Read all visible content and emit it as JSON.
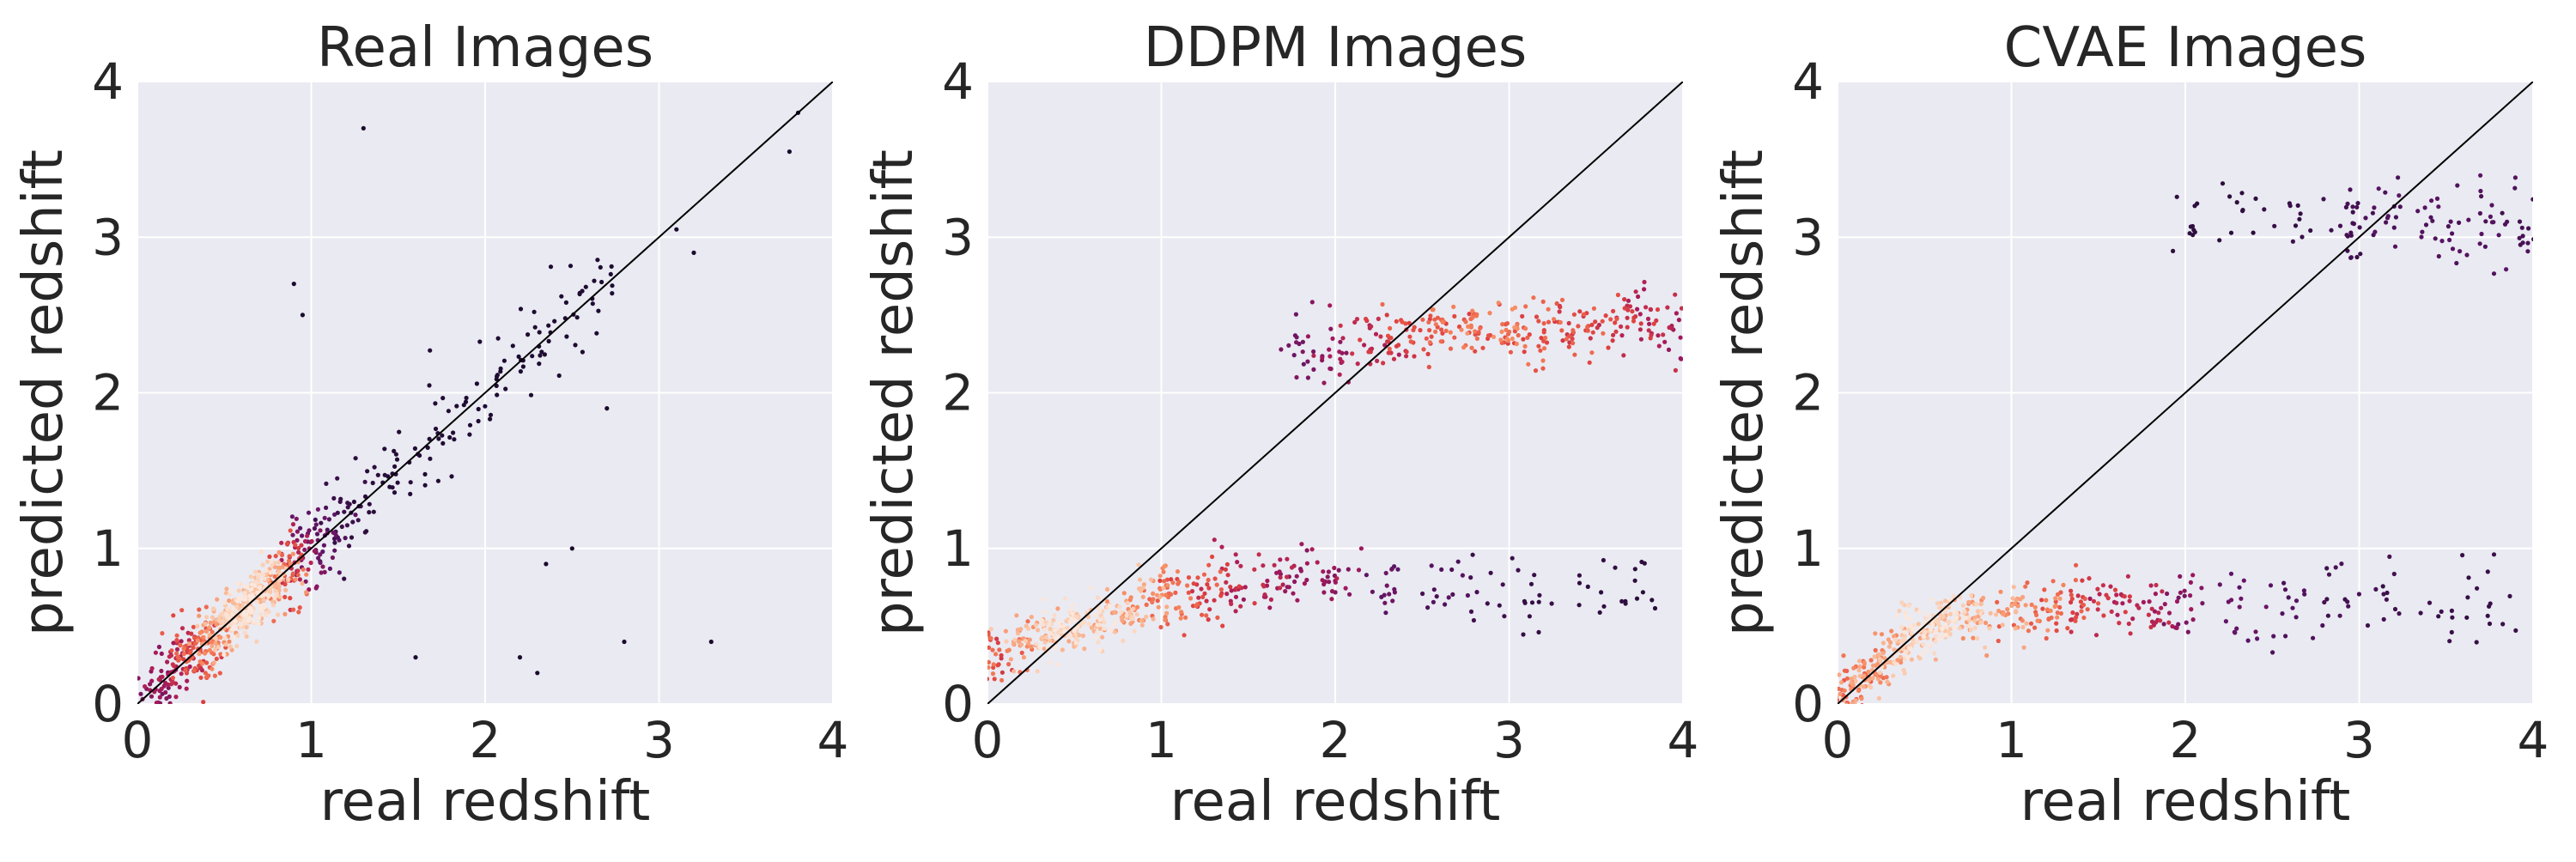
{
  "chart_data": [
    {
      "type": "scatter",
      "title": "Real Images",
      "xlabel": "real redshift",
      "ylabel": "predicted redshift",
      "xlim": [
        0,
        4
      ],
      "ylim": [
        0,
        4
      ],
      "xticks": [
        "0",
        "1",
        "2",
        "3",
        "4"
      ],
      "yticks": [
        "0",
        "1",
        "2",
        "3",
        "4"
      ],
      "grid": true,
      "reference_line": {
        "x": [
          0,
          4
        ],
        "y": [
          0,
          4
        ]
      },
      "colormap": [
        "#1a0b2e",
        "#5c1466",
        "#a3195b",
        "#e0423f",
        "#f6855c",
        "#fac6a6",
        "#fbe7dc"
      ],
      "series": [
        {
          "x": [
            0.1,
            0.15,
            0.2,
            0.25,
            0.3,
            0.35,
            0.4,
            0.45,
            0.5,
            0.55,
            0.6,
            0.65,
            0.7,
            0.75,
            0.8,
            0.85,
            0.9,
            0.95,
            1.0,
            1.05,
            1.1,
            1.15,
            1.2,
            1.3,
            1.4,
            1.5,
            1.6,
            1.7,
            1.8,
            1.9,
            2.0,
            2.1,
            2.2,
            2.3,
            2.4,
            2.5,
            2.6,
            2.65
          ],
          "y": [
            0.1,
            0.14,
            0.21,
            0.25,
            0.31,
            0.34,
            0.41,
            0.46,
            0.52,
            0.55,
            0.61,
            0.66,
            0.72,
            0.75,
            0.8,
            0.86,
            0.9,
            0.96,
            1.0,
            1.06,
            1.09,
            1.16,
            1.21,
            1.29,
            1.42,
            1.5,
            1.61,
            1.69,
            1.82,
            1.9,
            2.0,
            2.12,
            2.2,
            2.33,
            2.4,
            2.52,
            2.6,
            2.66
          ],
          "density": [
            0.3,
            0.35,
            0.4,
            0.45,
            0.55,
            0.6,
            0.7,
            0.8,
            0.9,
            0.95,
            1.0,
            1.0,
            0.95,
            0.9,
            0.8,
            0.65,
            0.5,
            0.35,
            0.25,
            0.2,
            0.15,
            0.1,
            0.08,
            0.05,
            0.04,
            0.03,
            0.02,
            0.02,
            0.02,
            0.01,
            0.01,
            0.01,
            0.01,
            0.01,
            0.01,
            0.01,
            0.01,
            0.01
          ]
        },
        {
          "x": [
            0.9,
            0.95,
            1.3,
            1.6,
            2.2,
            2.3,
            2.35,
            2.5,
            2.7,
            2.8,
            3.1,
            3.2,
            3.3,
            3.75,
            3.8
          ],
          "y": [
            2.7,
            2.5,
            3.7,
            0.3,
            0.3,
            0.2,
            0.9,
            1.0,
            1.9,
            0.4,
            3.05,
            2.9,
            0.4,
            3.55,
            3.8
          ],
          "density": [
            0,
            0,
            0,
            0,
            0,
            0,
            0,
            0,
            0,
            0,
            0,
            0,
            0,
            0,
            0
          ]
        }
      ]
    },
    {
      "type": "scatter",
      "title": "DDPM Images",
      "xlabel": "real redshift",
      "ylabel": "predicted redshift",
      "xlim": [
        0,
        4
      ],
      "ylim": [
        0,
        4
      ],
      "xticks": [
        "0",
        "1",
        "2",
        "3",
        "4"
      ],
      "yticks": [
        "0",
        "1",
        "2",
        "3",
        "4"
      ],
      "grid": true,
      "reference_line": {
        "x": [
          0,
          4
        ],
        "y": [
          0,
          4
        ]
      },
      "colormap": [
        "#1a0b2e",
        "#5c1466",
        "#a3195b",
        "#e0423f",
        "#f6855c",
        "#fac6a6",
        "#fbe7dc"
      ],
      "series": [
        {
          "x": [
            0.05,
            0.2,
            0.35,
            0.5,
            0.65,
            0.8,
            0.95,
            1.1,
            1.25,
            1.4,
            1.6,
            1.8,
            2.0,
            2.3,
            2.6,
            2.9,
            3.2,
            3.5,
            3.8
          ],
          "y": [
            0.3,
            0.4,
            0.45,
            0.5,
            0.55,
            0.6,
            0.65,
            0.7,
            0.72,
            0.75,
            0.78,
            0.8,
            0.8,
            0.78,
            0.75,
            0.72,
            0.7,
            0.7,
            0.68
          ],
          "density": [
            0.6,
            0.8,
            0.95,
            1.0,
            0.95,
            0.85,
            0.75,
            0.65,
            0.55,
            0.45,
            0.4,
            0.35,
            0.3,
            0.2,
            0.15,
            0.1,
            0.08,
            0.06,
            0.05
          ]
        },
        {
          "x": [
            1.8,
            2.0,
            2.2,
            2.4,
            2.6,
            2.8,
            3.0,
            3.2,
            3.4,
            3.6,
            3.8,
            3.95
          ],
          "y": [
            2.25,
            2.28,
            2.32,
            2.35,
            2.38,
            2.4,
            2.4,
            2.42,
            2.42,
            2.45,
            2.45,
            2.45
          ],
          "density": [
            0.25,
            0.35,
            0.45,
            0.55,
            0.6,
            0.65,
            0.65,
            0.6,
            0.55,
            0.5,
            0.45,
            0.4
          ]
        }
      ]
    },
    {
      "type": "scatter",
      "title": "CVAE Images",
      "xlabel": "real redshift",
      "ylabel": "predicted redshift",
      "xlim": [
        0,
        4
      ],
      "ylim": [
        0,
        4
      ],
      "xticks": [
        "0",
        "1",
        "2",
        "3",
        "4"
      ],
      "yticks": [
        "0",
        "1",
        "2",
        "3",
        "4"
      ],
      "grid": true,
      "reference_line": {
        "x": [
          0,
          4
        ],
        "y": [
          0,
          4
        ]
      },
      "colormap": [
        "#1a0b2e",
        "#5c1466",
        "#a3195b",
        "#e0423f",
        "#f6855c",
        "#fac6a6",
        "#fbe7dc"
      ],
      "series": [
        {
          "x": [
            0.05,
            0.15,
            0.25,
            0.35,
            0.45,
            0.55,
            0.65,
            0.8,
            1.0,
            1.2,
            1.4,
            1.6,
            1.8,
            2.0,
            2.3,
            2.6,
            2.9,
            3.2,
            3.5,
            3.8
          ],
          "y": [
            0.05,
            0.15,
            0.25,
            0.35,
            0.45,
            0.5,
            0.55,
            0.58,
            0.6,
            0.62,
            0.63,
            0.64,
            0.64,
            0.64,
            0.63,
            0.62,
            0.62,
            0.62,
            0.62,
            0.62
          ],
          "density": [
            0.7,
            0.75,
            0.8,
            0.9,
            1.0,
            1.0,
            0.95,
            0.85,
            0.75,
            0.65,
            0.55,
            0.45,
            0.4,
            0.3,
            0.2,
            0.15,
            0.12,
            0.1,
            0.08,
            0.08
          ]
        },
        {
          "x": [
            2.0,
            2.3,
            2.6,
            2.9,
            3.0,
            3.2,
            3.4,
            3.6,
            3.8,
            3.95
          ],
          "y": [
            3.1,
            3.15,
            3.1,
            3.05,
            3.1,
            3.15,
            3.1,
            3.1,
            3.1,
            3.05
          ],
          "density": [
            0.05,
            0.05,
            0.08,
            0.1,
            0.12,
            0.15,
            0.15,
            0.15,
            0.15,
            0.12
          ]
        }
      ]
    }
  ]
}
